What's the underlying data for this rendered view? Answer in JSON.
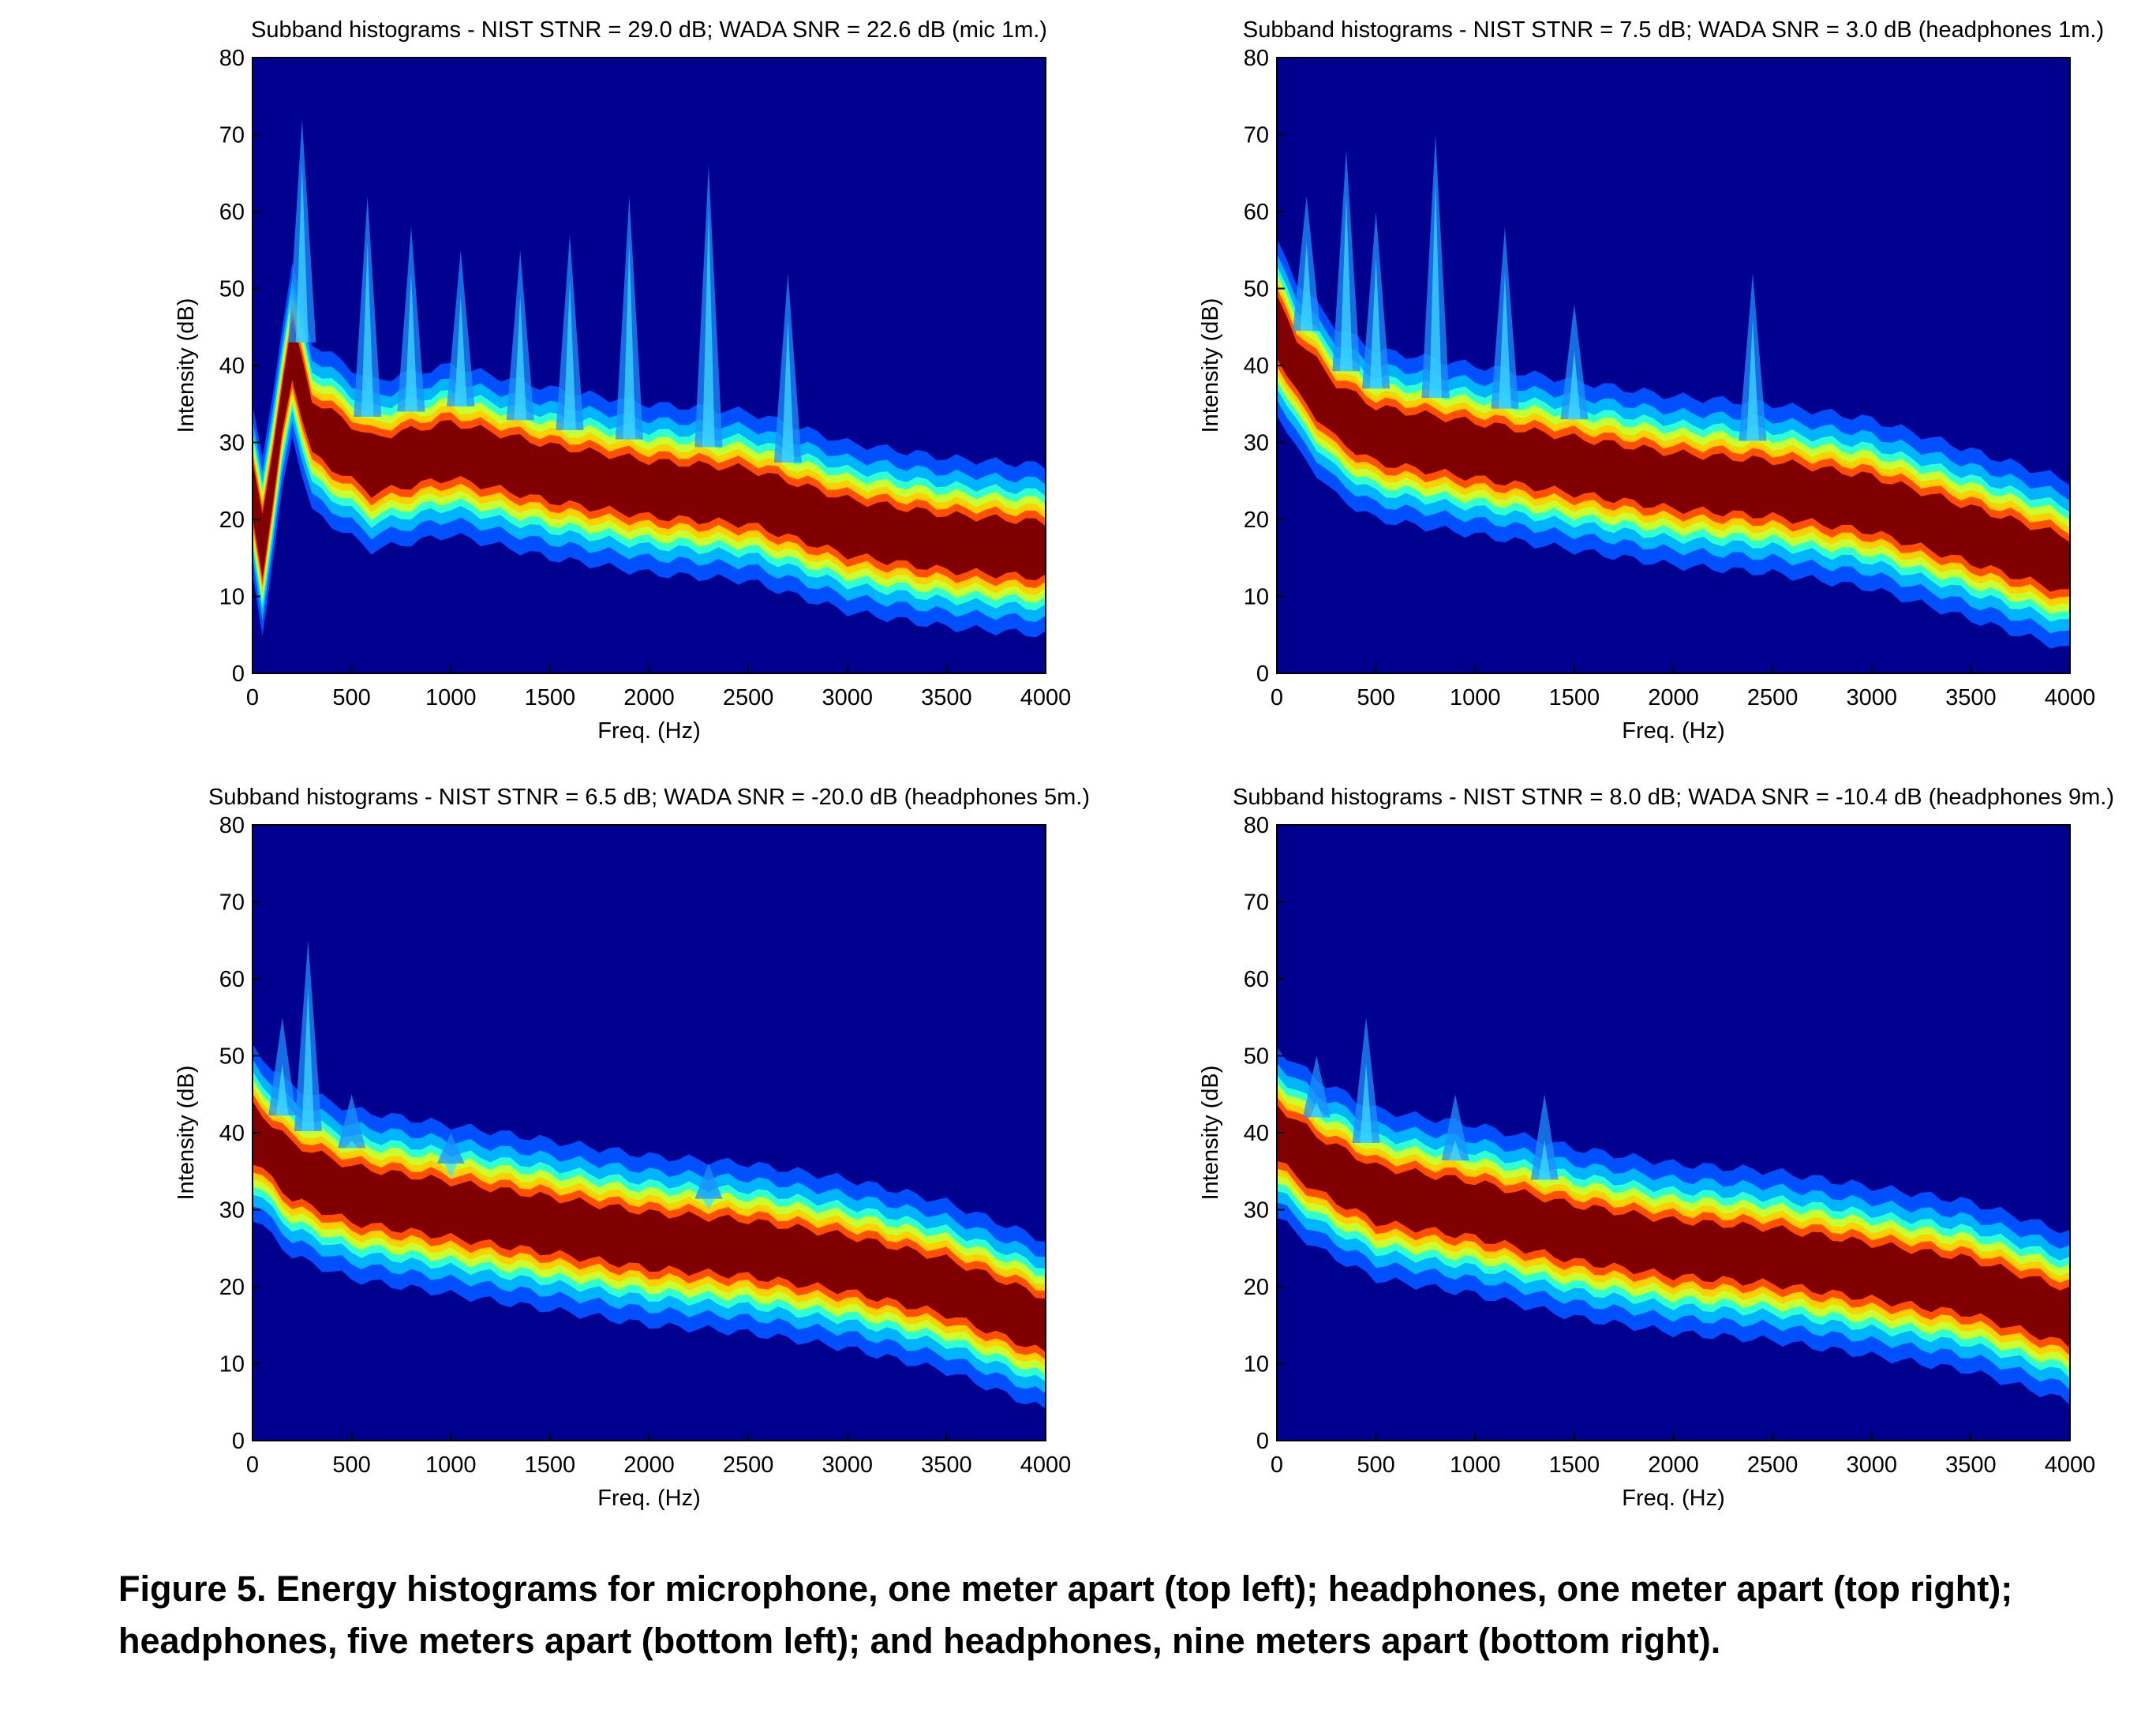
{
  "chart_data": [
    {
      "type": "heatmap",
      "title": "Subband histograms - NIST STNR = 29.0 dB; WADA SNR  = 22.6 dB (mic 1m.)",
      "xlabel": "Freq. (Hz)",
      "ylabel": "Intensity (dB)",
      "xlim": [
        0,
        4000
      ],
      "ylim": [
        0,
        80
      ],
      "xticks": [
        0,
        500,
        1000,
        1500,
        2000,
        2500,
        3000,
        3500,
        4000
      ],
      "yticks": [
        0,
        10,
        20,
        30,
        40,
        50,
        60,
        70,
        80
      ],
      "ridge": [
        [
          0,
          24
        ],
        [
          60,
          15
        ],
        [
          120,
          30
        ],
        [
          200,
          42
        ],
        [
          300,
          32
        ],
        [
          600,
          27
        ],
        [
          1000,
          29
        ],
        [
          1500,
          26
        ],
        [
          2000,
          24
        ],
        [
          2500,
          23
        ],
        [
          3000,
          19
        ],
        [
          3500,
          17
        ],
        [
          4000,
          16
        ]
      ],
      "peaks": [
        [
          250,
          72
        ],
        [
          580,
          62
        ],
        [
          800,
          58
        ],
        [
          1050,
          55
        ],
        [
          1350,
          55
        ],
        [
          1600,
          57
        ],
        [
          1900,
          62
        ],
        [
          2300,
          66
        ],
        [
          2700,
          52
        ]
      ]
    },
    {
      "type": "heatmap",
      "title": "Subband histograms - NIST STNR = 7.5 dB; WADA SNR  = 3.0 dB (headphones 1m.)",
      "xlabel": "Freq. (Hz)",
      "ylabel": "Intensity (dB)",
      "xlim": [
        0,
        4000
      ],
      "ylim": [
        0,
        80
      ],
      "xticks": [
        0,
        500,
        1000,
        1500,
        2000,
        2500,
        3000,
        3500,
        4000
      ],
      "yticks": [
        0,
        10,
        20,
        30,
        40,
        50,
        60,
        70,
        80
      ],
      "ridge": [
        [
          0,
          45
        ],
        [
          100,
          40
        ],
        [
          300,
          34
        ],
        [
          500,
          31
        ],
        [
          1000,
          29
        ],
        [
          1500,
          27
        ],
        [
          2000,
          25
        ],
        [
          2500,
          24
        ],
        [
          3000,
          22
        ],
        [
          3500,
          18
        ],
        [
          4000,
          14
        ]
      ],
      "peaks": [
        [
          150,
          62
        ],
        [
          350,
          68
        ],
        [
          500,
          60
        ],
        [
          800,
          70
        ],
        [
          1150,
          58
        ],
        [
          1500,
          48
        ],
        [
          2400,
          52
        ]
      ]
    },
    {
      "type": "heatmap",
      "title": "Subband histograms - NIST STNR = 6.5 dB; WADA SNR  = -20.0 dB (headphones 5m.)",
      "xlabel": "Freq. (Hz)",
      "ylabel": "Intensity (dB)",
      "xlim": [
        0,
        4000
      ],
      "ylim": [
        0,
        80
      ],
      "xticks": [
        0,
        500,
        1000,
        1500,
        2000,
        2500,
        3000,
        3500,
        4000
      ],
      "yticks": [
        0,
        10,
        20,
        30,
        40,
        50,
        60,
        70,
        80
      ],
      "ridge": [
        [
          0,
          40
        ],
        [
          200,
          35
        ],
        [
          500,
          32
        ],
        [
          1000,
          30
        ],
        [
          1500,
          28
        ],
        [
          2000,
          26
        ],
        [
          2500,
          25
        ],
        [
          3000,
          23
        ],
        [
          3500,
          20
        ],
        [
          4000,
          15
        ]
      ],
      "peaks": [
        [
          150,
          55
        ],
        [
          280,
          65
        ],
        [
          500,
          45
        ],
        [
          1000,
          40
        ],
        [
          2300,
          36
        ]
      ]
    },
    {
      "type": "heatmap",
      "title": "Subband histograms - NIST STNR = 8.0 dB; WADA SNR  = -10.4 dB (headphones 9m.)",
      "xlabel": "Freq. (Hz)",
      "ylabel": "Intensity (dB)",
      "xlim": [
        0,
        4000
      ],
      "ylim": [
        0,
        80
      ],
      "xticks": [
        0,
        500,
        1000,
        1500,
        2000,
        2500,
        3000,
        3500,
        4000
      ],
      "yticks": [
        0,
        10,
        20,
        30,
        40,
        50,
        60,
        70,
        80
      ],
      "ridge": [
        [
          0,
          40
        ],
        [
          200,
          36
        ],
        [
          500,
          32
        ],
        [
          1000,
          30
        ],
        [
          1500,
          27
        ],
        [
          2000,
          25
        ],
        [
          2500,
          24
        ],
        [
          3000,
          22
        ],
        [
          3500,
          20
        ],
        [
          4000,
          16
        ]
      ],
      "peaks": [
        [
          200,
          50
        ],
        [
          450,
          55
        ],
        [
          900,
          45
        ],
        [
          1350,
          45
        ]
      ]
    }
  ],
  "caption": {
    "line1": "Figure 5. Energy histograms for microphone, one meter apart (top left); headphones, one meter apart (top right);",
    "line2": "headphones, five meters apart (bottom left); and headphones, nine meters apart (bottom right)."
  },
  "colors": {
    "background": "#00008f",
    "ridge_core": "#800000",
    "axis": "#000000"
  }
}
